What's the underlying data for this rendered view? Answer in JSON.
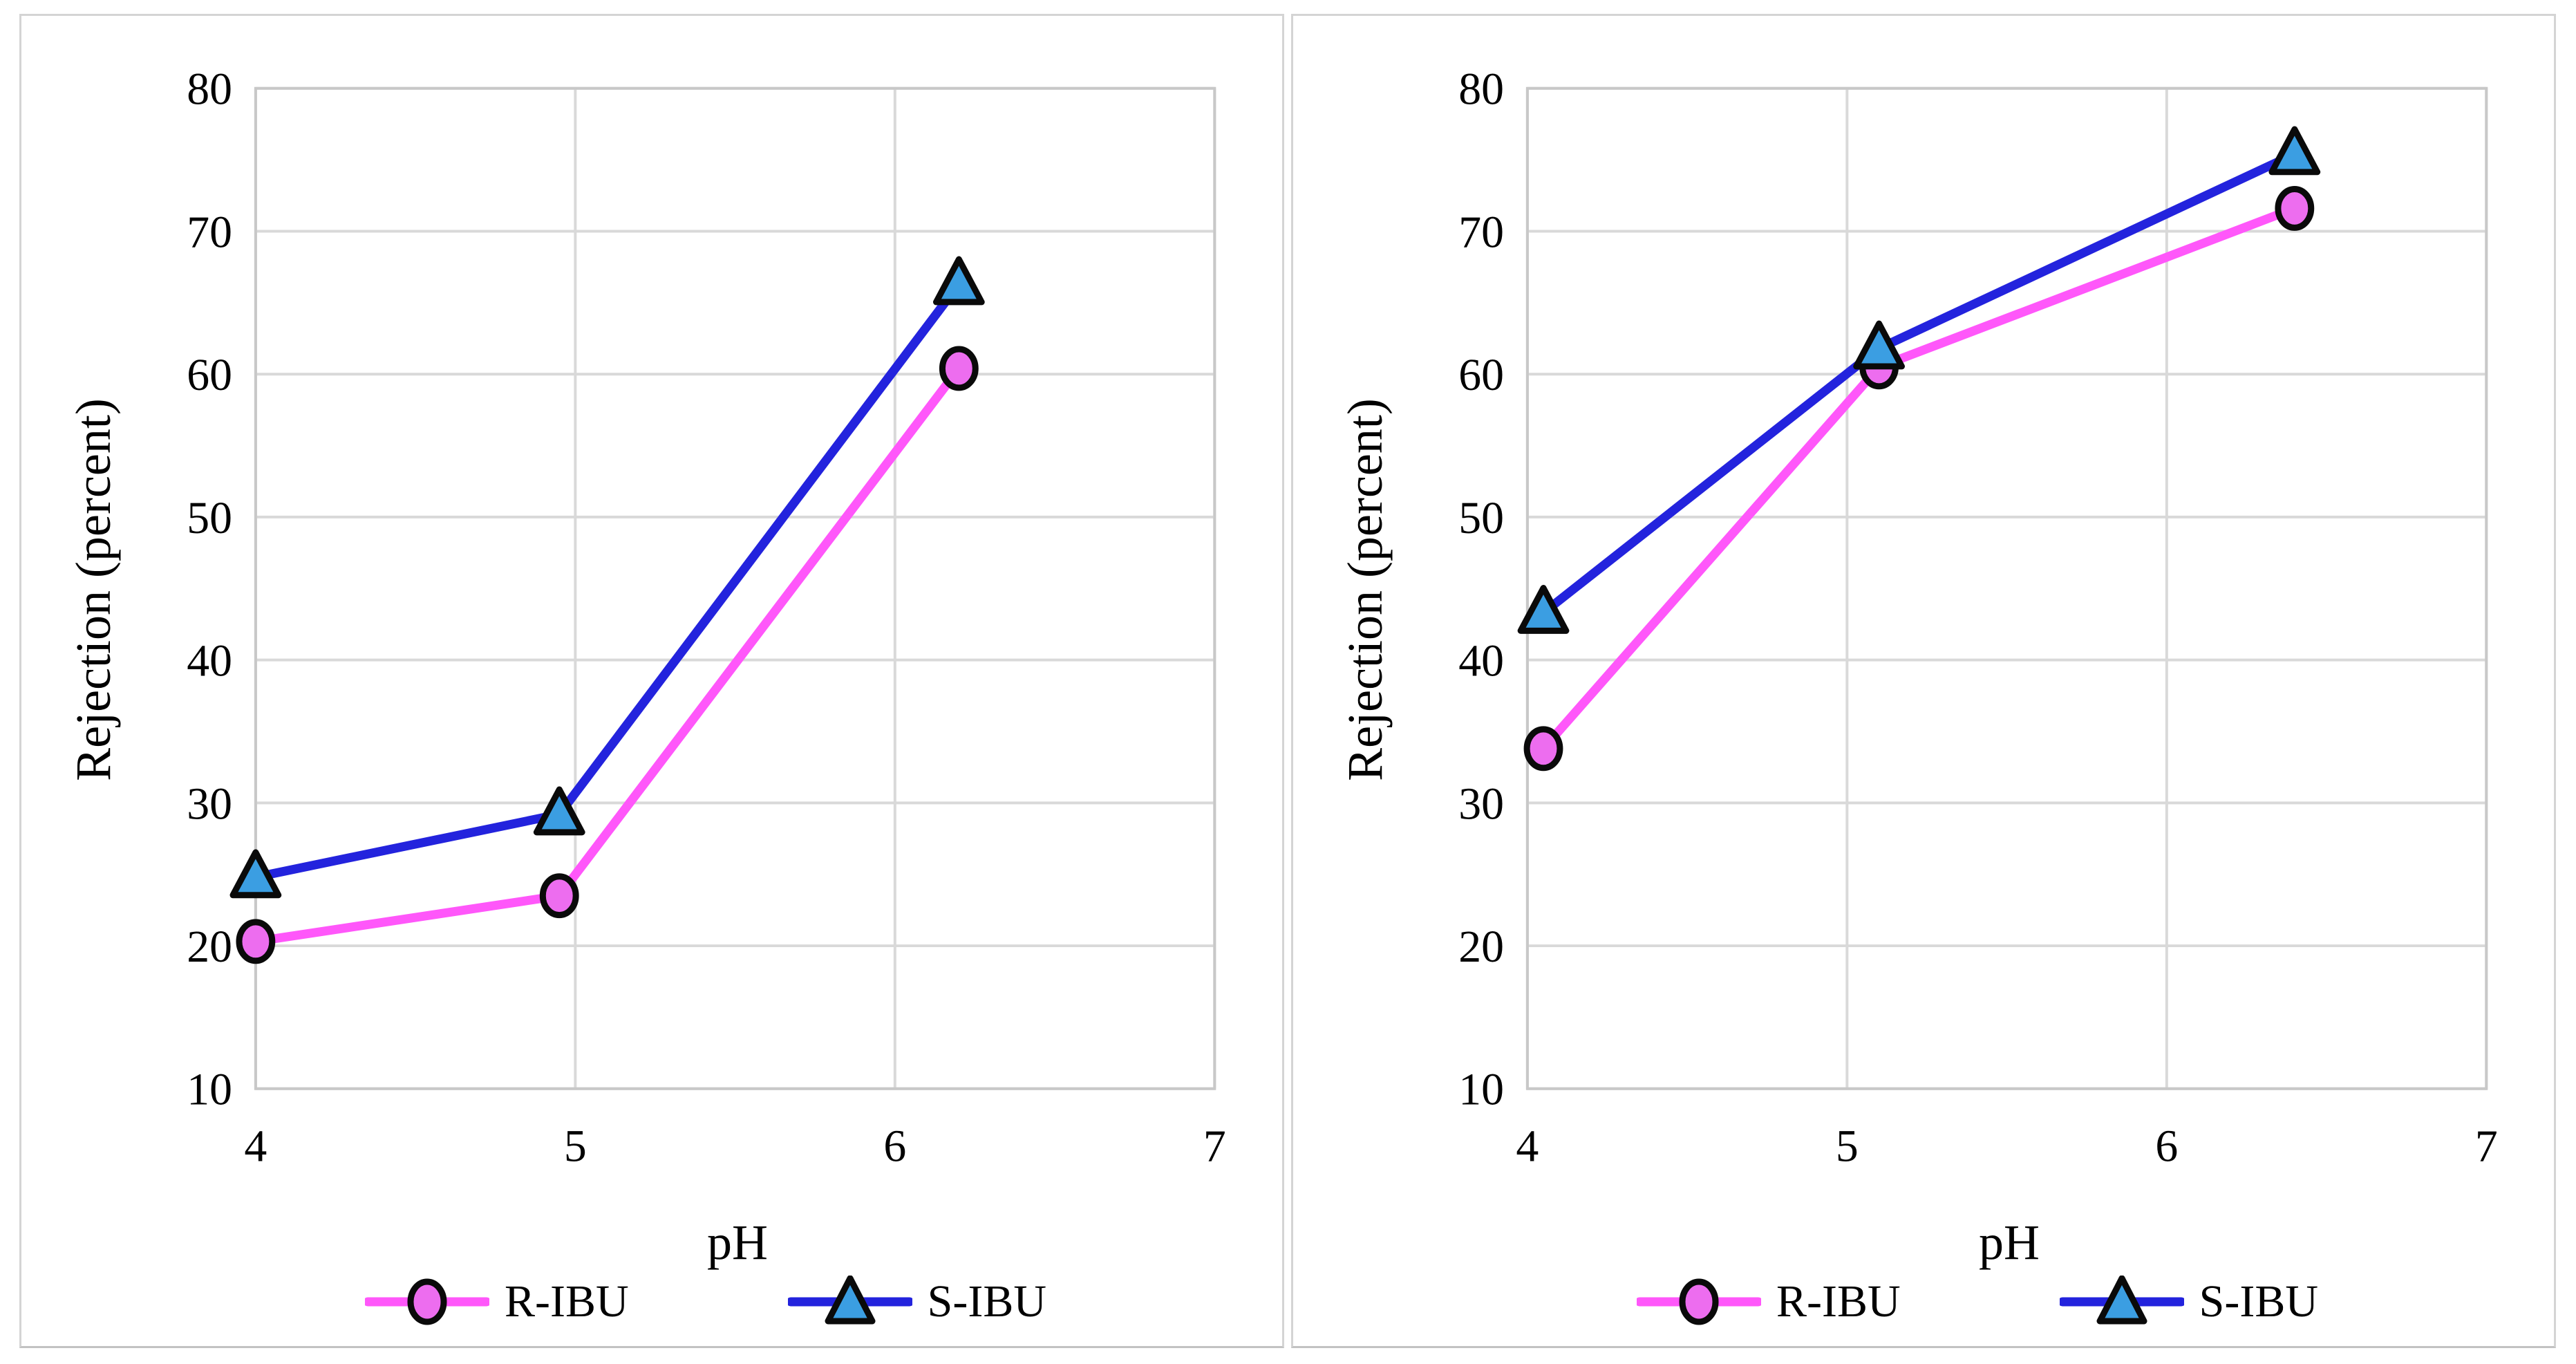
{
  "figure": {
    "background": "#ffffff",
    "panel_border_color": "#d4d4d4",
    "grid_color": "#d9d9d9",
    "plot_border_color": "#c8c8c8",
    "text_color": "#000000"
  },
  "chart_data": [
    {
      "id": "left-chart",
      "type": "line",
      "title": "",
      "xlabel": "pH",
      "ylabel": "Rejection (percent)",
      "xlim": [
        4,
        7
      ],
      "ylim": [
        10,
        80
      ],
      "xticks": [
        4,
        5,
        6,
        7
      ],
      "yticks": [
        10,
        20,
        30,
        40,
        50,
        60,
        70,
        80
      ],
      "grid": true,
      "legend_position": "bottom",
      "series": [
        {
          "name": "R-IBU",
          "marker": "circle",
          "line_color": "#ff57fa",
          "marker_fill": "#ed6def",
          "marker_edge": "#0a0a0a",
          "x": [
            4.0,
            4.95,
            6.2
          ],
          "y": [
            20.3,
            23.5,
            60.4
          ]
        },
        {
          "name": "S-IBU",
          "marker": "triangle",
          "line_color": "#2323dd",
          "marker_fill": "#3b9ee2",
          "marker_edge": "#0a0a0a",
          "x": [
            4.0,
            4.95,
            6.2
          ],
          "y": [
            24.8,
            29.2,
            66.3
          ]
        }
      ]
    },
    {
      "id": "right-chart",
      "type": "line",
      "title": "",
      "xlabel": "pH",
      "ylabel": "Rejection (percent)",
      "xlim": [
        4,
        7
      ],
      "ylim": [
        10,
        80
      ],
      "xticks": [
        4,
        5,
        6,
        7
      ],
      "yticks": [
        10,
        20,
        30,
        40,
        50,
        60,
        70,
        80
      ],
      "grid": true,
      "legend_position": "bottom",
      "series": [
        {
          "name": "R-IBU",
          "marker": "circle",
          "line_color": "#ff57fa",
          "marker_fill": "#ed6def",
          "marker_edge": "#0a0a0a",
          "x": [
            4.05,
            5.1,
            6.4
          ],
          "y": [
            33.8,
            60.5,
            71.6
          ]
        },
        {
          "name": "S-IBU",
          "marker": "triangle",
          "line_color": "#2323dd",
          "marker_fill": "#3b9ee2",
          "marker_edge": "#0a0a0a",
          "x": [
            4.05,
            5.1,
            6.4
          ],
          "y": [
            43.3,
            61.8,
            75.4
          ]
        }
      ]
    }
  ]
}
